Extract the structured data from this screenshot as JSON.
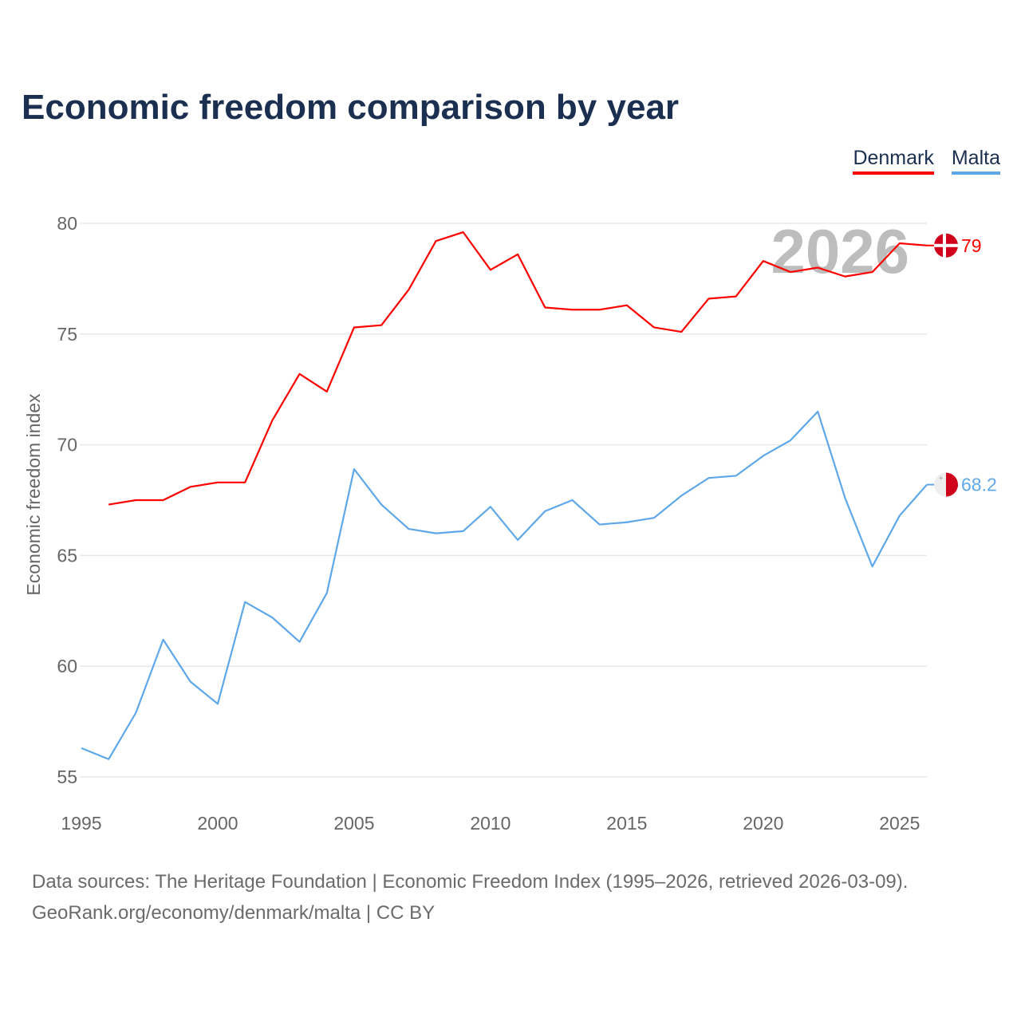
{
  "chart_data": {
    "type": "line",
    "title": "Economic freedom comparison by year",
    "xlabel": "",
    "ylabel": "Economic freedom index",
    "xlim": [
      1995,
      2026
    ],
    "ylim": [
      55,
      80
    ],
    "yticks": [
      55,
      60,
      65,
      70,
      75,
      80
    ],
    "xticks": [
      1995,
      2000,
      2005,
      2010,
      2015,
      2020,
      2025
    ],
    "grid": true,
    "legend_position": "top-right",
    "current_year_label": "2026",
    "series": [
      {
        "name": "Denmark",
        "color": "#ff0000",
        "end_label": "79",
        "x": [
          1996,
          1997,
          1998,
          1999,
          2000,
          2001,
          2002,
          2003,
          2004,
          2005,
          2006,
          2007,
          2008,
          2009,
          2010,
          2011,
          2012,
          2013,
          2014,
          2015,
          2016,
          2017,
          2018,
          2019,
          2020,
          2021,
          2022,
          2023,
          2024,
          2025,
          2026
        ],
        "values": [
          67.3,
          67.5,
          67.5,
          68.1,
          68.3,
          68.3,
          71.1,
          73.2,
          72.4,
          75.3,
          75.4,
          77.0,
          79.2,
          79.6,
          77.9,
          78.6,
          76.2,
          76.1,
          76.1,
          76.3,
          75.3,
          75.1,
          76.6,
          76.7,
          78.3,
          77.8,
          78.0,
          77.6,
          77.8,
          79.1,
          79.0
        ]
      },
      {
        "name": "Malta",
        "color": "#5ea8ea",
        "end_label": "68.2",
        "x": [
          1995,
          1996,
          1997,
          1998,
          1999,
          2000,
          2001,
          2002,
          2003,
          2004,
          2005,
          2006,
          2007,
          2008,
          2009,
          2010,
          2011,
          2012,
          2013,
          2014,
          2015,
          2016,
          2017,
          2018,
          2019,
          2020,
          2021,
          2022,
          2023,
          2024,
          2025,
          2026
        ],
        "values": [
          56.3,
          55.8,
          57.9,
          61.2,
          59.3,
          58.3,
          62.9,
          62.2,
          61.1,
          63.3,
          68.9,
          67.3,
          66.2,
          66.0,
          66.1,
          67.2,
          65.7,
          67.0,
          67.5,
          66.4,
          66.5,
          66.7,
          67.7,
          68.5,
          68.6,
          69.5,
          70.2,
          71.5,
          67.6,
          64.5,
          66.8,
          68.2
        ]
      }
    ]
  },
  "footer": {
    "line1": "Data sources: The Heritage Foundation | Economic Freedom Index (1995–2026, retrieved 2026-03-09).",
    "line2": "GeoRank.org/economy/denmark/malta | CC BY"
  }
}
